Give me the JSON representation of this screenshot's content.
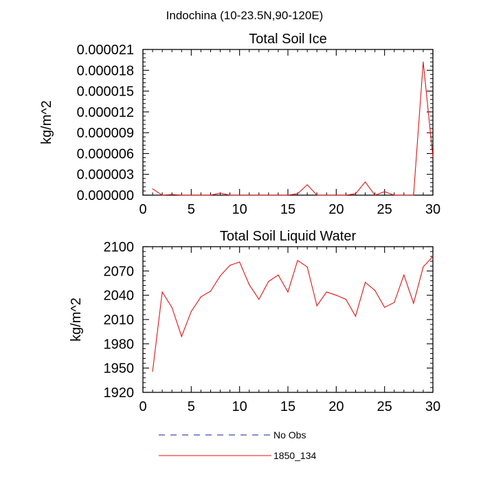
{
  "page": {
    "suptitle": "Indochina (10-23.5N,90-120E)"
  },
  "legend": {
    "placement": "bottom",
    "entries": [
      {
        "label": "No Obs",
        "color": "#1a1a9a",
        "style": "dashed"
      },
      {
        "label": "1850_134",
        "color": "#e81010",
        "style": "solid"
      }
    ]
  },
  "chart_data": [
    {
      "type": "line",
      "title": "Total Soil Ice",
      "xlabel": "",
      "ylabel": "kg/m^2",
      "xlim": [
        0,
        30
      ],
      "ylim": [
        0,
        2.1e-05
      ],
      "xticks": [
        0,
        5,
        10,
        15,
        20,
        25,
        30
      ],
      "yticks": [
        0,
        3e-06,
        6e-06,
        9e-06,
        1.2e-05,
        1.5e-05,
        1.8e-05,
        2.1e-05
      ],
      "ytick_labels": [
        "0.000000",
        "0.000003",
        "0.000006",
        "0.000009",
        "0.000012",
        "0.000015",
        "0.000018",
        "0.000021"
      ],
      "series": [
        {
          "name": "1850_134",
          "color": "#e81010",
          "x": [
            1,
            2,
            3,
            4,
            5,
            6,
            7,
            8,
            9,
            10,
            11,
            12,
            13,
            14,
            15,
            16,
            17,
            18,
            19,
            20,
            21,
            22,
            23,
            24,
            25,
            26,
            27,
            28,
            29,
            30
          ],
          "values": [
            9e-07,
            0.0,
            1e-07,
            0.0,
            0.0,
            0.0,
            0.0,
            3e-07,
            0.0,
            0.0,
            0.0,
            0.0,
            0.0,
            0.0,
            0.0,
            2e-07,
            1.5e-06,
            0.0,
            0.0,
            0.0,
            0.0,
            2e-07,
            1.9e-06,
            0.0,
            5e-07,
            0.0,
            0.0,
            0.0,
            1.92e-05,
            5.5e-06
          ]
        }
      ]
    },
    {
      "type": "line",
      "title": "Total Soil Liquid Water",
      "xlabel": "",
      "ylabel": "kg/m^2",
      "xlim": [
        0,
        30
      ],
      "ylim": [
        1920,
        2100
      ],
      "xticks": [
        0,
        5,
        10,
        15,
        20,
        25,
        30
      ],
      "yticks": [
        1920,
        1950,
        1980,
        2010,
        2040,
        2070,
        2100
      ],
      "ytick_labels": [
        "1920",
        "1950",
        "1980",
        "2010",
        "2040",
        "2070",
        "2100"
      ],
      "series": [
        {
          "name": "1850_134",
          "color": "#e81010",
          "x": [
            1,
            2,
            3,
            4,
            5,
            6,
            7,
            8,
            9,
            10,
            11,
            12,
            13,
            14,
            15,
            16,
            17,
            18,
            19,
            20,
            21,
            22,
            23,
            24,
            25,
            26,
            27,
            28,
            29,
            30
          ],
          "values": [
            1946,
            2044,
            2025,
            1989,
            2020,
            2038,
            2045,
            2064,
            2077,
            2081,
            2053,
            2035,
            2057,
            2065,
            2044,
            2083,
            2075,
            2027,
            2044,
            2040,
            2035,
            2014,
            2056,
            2046,
            2025,
            2031,
            2065,
            2030,
            2075,
            2088
          ]
        }
      ]
    }
  ]
}
